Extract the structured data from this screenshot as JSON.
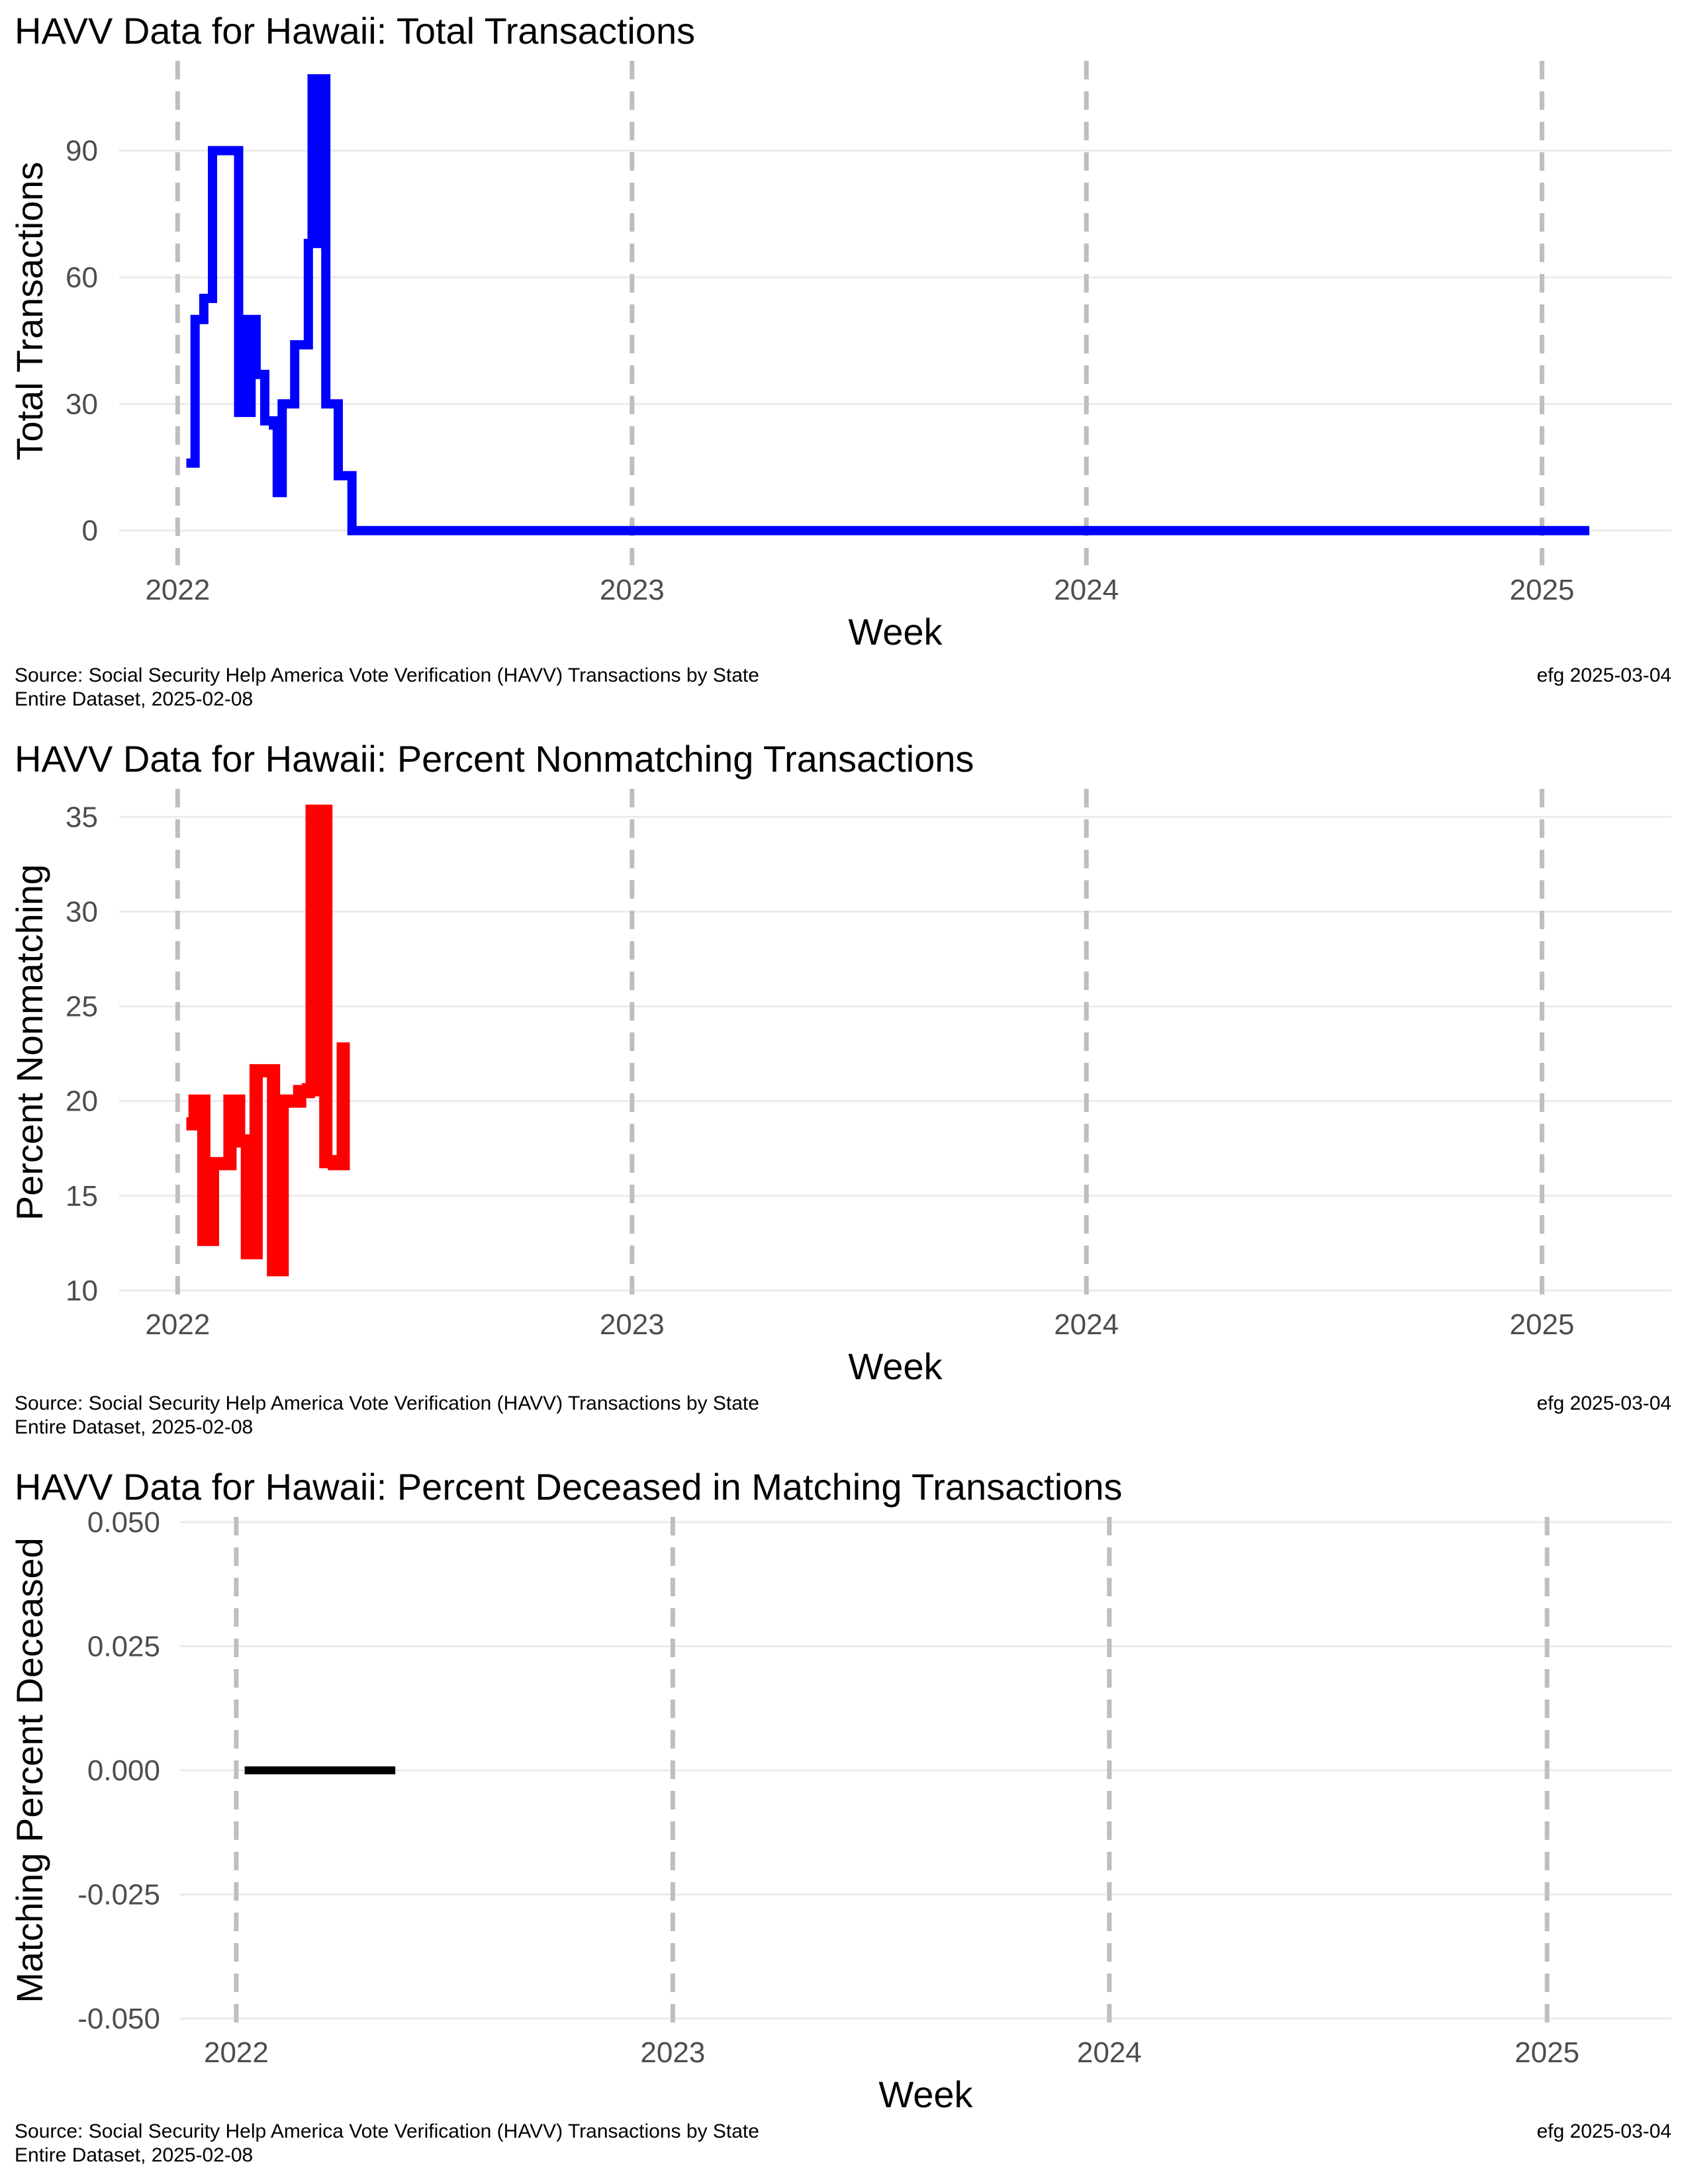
{
  "chart_data": [
    {
      "type": "line",
      "title": "HAVV Data for Hawaii:  Total Transactions",
      "xlabel": "Week",
      "ylabel": "Total Transactions",
      "x_axis": "date",
      "xlim": [
        "2021-11-15",
        "2025-04-15"
      ],
      "ylim": [
        -6,
        110
      ],
      "yticks": [
        0,
        30,
        60,
        90
      ],
      "xticks": [
        "2022",
        "2023",
        "2024",
        "2025"
      ],
      "xtick_dates": [
        "2022-01-01",
        "2023-01-01",
        "2024-01-01",
        "2025-01-01"
      ],
      "grid": true,
      "legend": "none",
      "series": [
        {
          "color": "#0000ff",
          "step": true,
          "points": [
            [
              "2022-01-08",
              16
            ],
            [
              "2022-01-15",
              50
            ],
            [
              "2022-01-22",
              55
            ],
            [
              "2022-01-29",
              90
            ],
            [
              "2022-02-05",
              90
            ],
            [
              "2022-02-12",
              90
            ],
            [
              "2022-02-19",
              28
            ],
            [
              "2022-02-22",
              50
            ],
            [
              "2022-02-26",
              28
            ],
            [
              "2022-03-01",
              50
            ],
            [
              "2022-03-05",
              37
            ],
            [
              "2022-03-12",
              26
            ],
            [
              "2022-03-19",
              25
            ],
            [
              "2022-03-22",
              9
            ],
            [
              "2022-03-26",
              30
            ],
            [
              "2022-04-02",
              30
            ],
            [
              "2022-04-05",
              44
            ],
            [
              "2022-04-09",
              44
            ],
            [
              "2022-04-16",
              68
            ],
            [
              "2022-04-19",
              107
            ],
            [
              "2022-04-23",
              68
            ],
            [
              "2022-04-26",
              107
            ],
            [
              "2022-04-30",
              30
            ],
            [
              "2022-05-07",
              30
            ],
            [
              "2022-05-10",
              13
            ],
            [
              "2022-05-14",
              13
            ],
            [
              "2022-05-21",
              0
            ],
            [
              "2025-02-08",
              0
            ]
          ]
        }
      ]
    },
    {
      "type": "line",
      "title": "HAVV Data for Hawaii:  Percent Nonmatching Transactions",
      "xlabel": "Week",
      "ylabel": "Percent Nonmatching",
      "x_axis": "date",
      "xlim": [
        "2021-11-15",
        "2025-04-15"
      ],
      "ylim": [
        10,
        36.2
      ],
      "yticks": [
        10,
        15,
        20,
        25,
        30,
        35
      ],
      "xticks": [
        "2022",
        "2023",
        "2024",
        "2025"
      ],
      "xtick_dates": [
        "2022-01-01",
        "2023-01-01",
        "2024-01-01",
        "2025-01-01"
      ],
      "grid": true,
      "legend": "none",
      "series": [
        {
          "color": "#ff0000",
          "step": true,
          "points": [
            [
              "2022-01-08",
              18.8
            ],
            [
              "2022-01-15",
              20.0
            ],
            [
              "2022-01-22",
              12.7
            ],
            [
              "2022-01-29",
              16.7
            ],
            [
              "2022-02-05",
              16.7
            ],
            [
              "2022-02-12",
              20.0
            ],
            [
              "2022-02-19",
              17.9
            ],
            [
              "2022-02-26",
              12.0
            ],
            [
              "2022-03-05",
              21.6
            ],
            [
              "2022-03-12",
              21.6
            ],
            [
              "2022-03-19",
              11.1
            ],
            [
              "2022-03-26",
              20.0
            ],
            [
              "2022-04-02",
              20.0
            ],
            [
              "2022-04-09",
              20.5
            ],
            [
              "2022-04-16",
              20.6
            ],
            [
              "2022-04-19",
              35.3
            ],
            [
              "2022-04-23",
              20.6
            ],
            [
              "2022-04-26",
              35.3
            ],
            [
              "2022-04-30",
              16.8
            ],
            [
              "2022-05-07",
              16.7
            ],
            [
              "2022-05-14",
              16.7
            ],
            [
              "2022-05-14",
              23.1
            ]
          ]
        }
      ]
    },
    {
      "type": "line",
      "title": "HAVV Data for Hawaii:  Percent Deceased in Matching Transactions",
      "xlabel": "Week",
      "ylabel": "Matching Percent Deceased",
      "x_axis": "date",
      "xlim": [
        "2021-11-15",
        "2025-04-15"
      ],
      "ylim": [
        -0.05,
        0.05
      ],
      "yticks": [
        -0.05,
        -0.025,
        0.0,
        0.025,
        0.05
      ],
      "ytick_labels": [
        "-0.050",
        "-0.025",
        "0.000",
        "0.025",
        "0.050"
      ],
      "xticks": [
        "2022",
        "2023",
        "2024",
        "2025"
      ],
      "xtick_dates": [
        "2022-01-01",
        "2023-01-01",
        "2024-01-01",
        "2025-01-01"
      ],
      "grid": true,
      "legend": "none",
      "series": [
        {
          "color": "#000000",
          "step": true,
          "points": [
            [
              "2022-01-08",
              0
            ],
            [
              "2022-05-14",
              0
            ]
          ]
        }
      ]
    }
  ],
  "captions": [
    {
      "source_line1": "Source:  Social Security Help America Vote Verification (HAVV) Transactions by State",
      "source_line2": "Entire Dataset, 2025-02-08",
      "credit": "efg 2025-03-04"
    },
    {
      "source_line1": "Source:  Social Security Help America Vote Verification (HAVV) Transactions by State",
      "source_line2": "Entire Dataset, 2025-02-08",
      "credit": "efg 2025-03-04"
    },
    {
      "source_line1": "Source:  Social Security Help America Vote Verification (HAVV) Transactions by State",
      "source_line2": "Entire Dataset, 2025-02-08",
      "credit": "efg 2025-03-04"
    }
  ]
}
